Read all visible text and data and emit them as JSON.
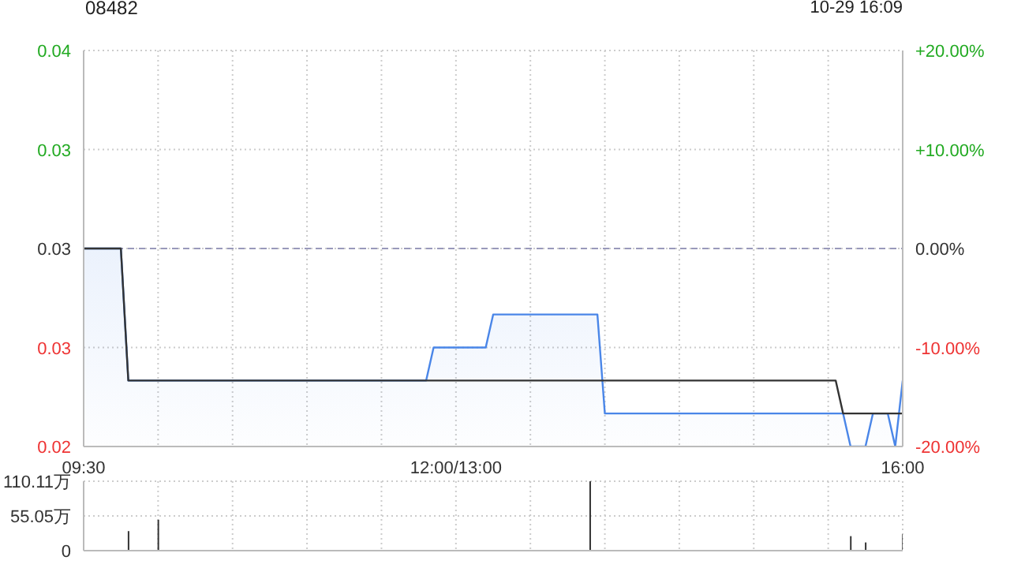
{
  "chart_data": [
    {
      "type": "area",
      "title": "08482",
      "annotations": [
        "10-29 16:09"
      ],
      "categories": [
        "09:30",
        null,
        null,
        null,
        null,
        null,
        null,
        null,
        null,
        null,
        null,
        null,
        null,
        null,
        null,
        null,
        null,
        null,
        null,
        null,
        null,
        null,
        null,
        null,
        null,
        null,
        null,
        null,
        null,
        null,
        null,
        null,
        null,
        null,
        null,
        null,
        null,
        null,
        null,
        null,
        null,
        null,
        null,
        null,
        null,
        null,
        null,
        null,
        null,
        null,
        "12:00/13:00",
        null,
        null,
        null,
        null,
        null,
        null,
        null,
        null,
        null,
        null,
        null,
        null,
        null,
        null,
        null,
        null,
        null,
        null,
        null,
        null,
        null,
        null,
        null,
        null,
        null,
        null,
        null,
        null,
        null,
        null,
        null,
        null,
        null,
        null,
        null,
        null,
        null,
        null,
        null,
        null,
        null,
        null,
        null,
        null,
        null,
        null,
        null,
        null,
        null,
        null,
        null,
        null,
        null,
        null,
        null,
        null,
        null,
        null,
        null,
        "16:00"
      ],
      "ylim": [
        0.024,
        0.036
      ],
      "yticks": [
        {
          "value": 0.036,
          "label": "0.04"
        },
        {
          "value": 0.033,
          "label": "0.03"
        },
        {
          "value": 0.03,
          "label": "0.03"
        },
        {
          "value": 0.027,
          "label": "0.03"
        },
        {
          "value": 0.024,
          "label": "0.02"
        }
      ],
      "y2lim": [
        -20,
        20
      ],
      "y2ticks": [
        {
          "value": 20,
          "label": "+20.00%"
        },
        {
          "value": 10,
          "label": "+10.00%"
        },
        {
          "value": 0,
          "label": "0.00%"
        },
        {
          "value": -10,
          "label": "-10.00%"
        },
        {
          "value": -20,
          "label": "-20.00%"
        }
      ],
      "grid": true,
      "ref_lines": [
        {
          "axis": "y",
          "value": 0.03,
          "color": "#9999bb",
          "line_style": "dashed"
        }
      ],
      "series": [
        {
          "color": "#4a86e8",
          "values": [
            0.03,
            0.03,
            0.03,
            0.03,
            0.03,
            0.03,
            0.026,
            0.026,
            0.026,
            0.026,
            0.026,
            0.026,
            0.026,
            0.026,
            0.026,
            0.026,
            0.026,
            0.026,
            0.026,
            0.026,
            0.026,
            0.026,
            0.026,
            0.026,
            0.026,
            0.026,
            0.026,
            0.026,
            0.026,
            0.026,
            0.026,
            0.026,
            0.026,
            0.026,
            0.026,
            0.026,
            0.026,
            0.026,
            0.026,
            0.026,
            0.026,
            0.026,
            0.026,
            0.026,
            0.026,
            0.026,
            0.026,
            0.027,
            0.027,
            0.027,
            0.027,
            0.027,
            0.027,
            0.027,
            0.027,
            0.028,
            0.028,
            0.028,
            0.028,
            0.028,
            0.028,
            0.028,
            0.028,
            0.028,
            0.028,
            0.028,
            0.028,
            0.028,
            0.028,
            0.028,
            0.025,
            0.025,
            0.025,
            0.025,
            0.025,
            0.025,
            0.025,
            0.025,
            0.025,
            0.025,
            0.025,
            0.025,
            0.025,
            0.025,
            0.025,
            0.025,
            0.025,
            0.025,
            0.025,
            0.025,
            0.025,
            0.025,
            0.025,
            0.025,
            0.025,
            0.025,
            0.025,
            0.025,
            0.025,
            0.025,
            0.025,
            0.025,
            0.025,
            0.024,
            0.024,
            0.024,
            0.025,
            0.025,
            0.025,
            0.024,
            0.026
          ]
        },
        {
          "type": "line",
          "color": "#333333",
          "values": [
            0.03,
            0.03,
            0.03,
            0.03,
            0.03,
            0.03,
            0.026,
            0.026,
            0.026,
            0.026,
            0.026,
            0.026,
            0.026,
            0.026,
            0.026,
            0.026,
            0.026,
            0.026,
            0.026,
            0.026,
            0.026,
            0.026,
            0.026,
            0.026,
            0.026,
            0.026,
            0.026,
            0.026,
            0.026,
            0.026,
            0.026,
            0.026,
            0.026,
            0.026,
            0.026,
            0.026,
            0.026,
            0.026,
            0.026,
            0.026,
            0.026,
            0.026,
            0.026,
            0.026,
            0.026,
            0.026,
            0.026,
            0.026,
            0.026,
            0.026,
            0.026,
            0.026,
            0.026,
            0.026,
            0.026,
            0.026,
            0.026,
            0.026,
            0.026,
            0.026,
            0.026,
            0.026,
            0.026,
            0.026,
            0.026,
            0.026,
            0.026,
            0.026,
            0.026,
            0.026,
            0.026,
            0.026,
            0.026,
            0.026,
            0.026,
            0.026,
            0.026,
            0.026,
            0.026,
            0.026,
            0.026,
            0.026,
            0.026,
            0.026,
            0.026,
            0.026,
            0.026,
            0.026,
            0.026,
            0.026,
            0.026,
            0.026,
            0.026,
            0.026,
            0.026,
            0.026,
            0.026,
            0.026,
            0.026,
            0.026,
            0.026,
            0.026,
            0.025,
            0.025,
            0.025,
            0.025,
            0.025,
            0.025,
            0.025,
            0.025,
            0.025
          ]
        }
      ]
    },
    {
      "type": "bar",
      "tick_labels": "y",
      "grid": true,
      "categories": [
        null,
        null,
        null,
        null,
        null,
        null,
        null,
        null,
        null,
        null,
        null,
        null,
        null,
        null,
        null,
        null,
        null,
        null,
        null,
        null,
        null,
        null,
        null,
        null,
        null,
        null,
        null,
        null,
        null,
        null,
        null,
        null,
        null,
        null,
        null,
        null,
        null,
        null,
        null,
        null,
        null,
        null,
        null,
        null,
        null,
        null,
        null,
        null,
        null,
        null,
        null,
        null,
        null,
        null,
        null,
        null,
        null,
        null,
        null,
        null,
        null,
        null,
        null,
        null,
        null,
        null,
        null,
        null,
        null,
        null,
        null,
        null,
        null,
        null,
        null,
        null,
        null,
        null,
        null,
        null,
        null,
        null,
        null,
        null,
        null,
        null,
        null,
        null,
        null,
        null,
        null,
        null,
        null,
        null,
        null,
        null,
        null,
        null,
        null,
        null,
        null,
        null,
        null,
        null,
        null,
        null,
        null,
        null,
        null,
        null,
        null
      ],
      "ylim": [
        0,
        110.11
      ],
      "yticks": [
        0,
        {
          "value": 55.05,
          "label": "55.05万"
        },
        {
          "value": 110.11,
          "label": "110.11万"
        }
      ],
      "values": [
        null,
        null,
        null,
        null,
        null,
        null,
        31,
        null,
        null,
        null,
        49,
        null,
        null,
        null,
        null,
        null,
        null,
        null,
        null,
        null,
        null,
        null,
        null,
        null,
        null,
        null,
        null,
        null,
        null,
        null,
        null,
        null,
        null,
        null,
        null,
        null,
        null,
        null,
        null,
        null,
        null,
        null,
        null,
        null,
        null,
        null,
        null,
        null,
        null,
        null,
        null,
        null,
        null,
        null,
        null,
        null,
        null,
        null,
        null,
        null,
        null,
        null,
        null,
        null,
        null,
        null,
        null,
        null,
        110,
        null,
        null,
        null,
        null,
        null,
        null,
        null,
        null,
        null,
        null,
        null,
        null,
        null,
        null,
        null,
        null,
        null,
        null,
        null,
        null,
        null,
        null,
        null,
        null,
        null,
        null,
        null,
        null,
        null,
        null,
        null,
        null,
        null,
        null,
        23,
        null,
        13,
        null,
        null,
        null,
        null,
        26
      ],
      "color": "#333333"
    }
  ]
}
